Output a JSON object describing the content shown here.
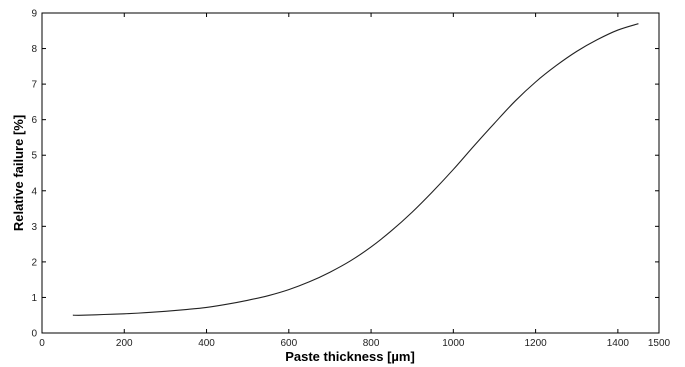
{
  "chart_data": {
    "type": "line",
    "xlabel": "Paste thickness [µm]",
    "ylabel": "Relative failure [%]",
    "xlim": [
      0,
      1500
    ],
    "ylim": [
      0,
      9
    ],
    "x_ticks": [
      0,
      200,
      400,
      600,
      800,
      1000,
      1200,
      1400,
      1500
    ],
    "y_ticks": [
      0,
      1,
      2,
      3,
      4,
      5,
      6,
      7,
      8,
      9
    ],
    "grid": false,
    "line_color": "#222222",
    "series": [
      {
        "x": [
          75,
          100,
          150,
          200,
          250,
          300,
          350,
          400,
          450,
          500,
          550,
          600,
          650,
          700,
          750,
          800,
          850,
          900,
          950,
          1000,
          1050,
          1100,
          1150,
          1200,
          1250,
          1300,
          1350,
          1400,
          1450
        ],
        "y": [
          0.5,
          0.5,
          0.52,
          0.54,
          0.57,
          0.61,
          0.66,
          0.72,
          0.81,
          0.92,
          1.05,
          1.22,
          1.44,
          1.71,
          2.03,
          2.42,
          2.88,
          3.4,
          3.98,
          4.6,
          5.26,
          5.9,
          6.52,
          7.06,
          7.52,
          7.92,
          8.25,
          8.52,
          8.7
        ]
      }
    ]
  }
}
